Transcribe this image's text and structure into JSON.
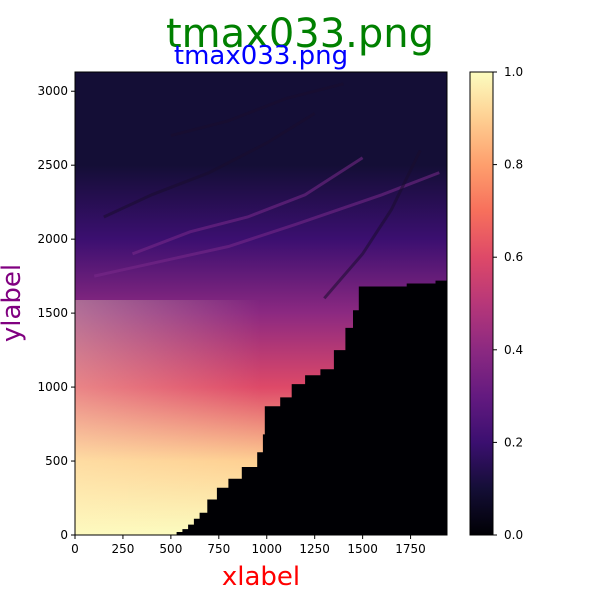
{
  "chart_data": {
    "type": "heatmap",
    "suptitle": "tmax033.png",
    "title": "tmax033.png",
    "xlabel": "xlabel",
    "ylabel": "ylabel",
    "colormap": "magma",
    "xlim": [
      0,
      1940
    ],
    "ylim": [
      0,
      3130
    ],
    "xticks": [
      0,
      250,
      500,
      750,
      1000,
      1250,
      1500,
      1750
    ],
    "yticks": [
      0,
      500,
      1000,
      1500,
      2000,
      2500,
      3000
    ],
    "colorbar": {
      "range": [
        0.0,
        1.0
      ],
      "ticks": [
        "0.0",
        "0.2",
        "0.4",
        "0.6",
        "0.8",
        "1.0"
      ]
    },
    "mask_boundary": [
      [
        510,
        0
      ],
      [
        530,
        20
      ],
      [
        560,
        40
      ],
      [
        590,
        70
      ],
      [
        620,
        110
      ],
      [
        650,
        150
      ],
      [
        690,
        240
      ],
      [
        740,
        320
      ],
      [
        800,
        380
      ],
      [
        870,
        460
      ],
      [
        950,
        560
      ],
      [
        980,
        680
      ],
      [
        990,
        870
      ],
      [
        1070,
        930
      ],
      [
        1130,
        1020
      ],
      [
        1200,
        1080
      ],
      [
        1280,
        1120
      ],
      [
        1350,
        1250
      ],
      [
        1410,
        1400
      ],
      [
        1450,
        1520
      ],
      [
        1480,
        1680
      ],
      [
        1560,
        1680
      ],
      [
        1730,
        1700
      ],
      [
        1880,
        1720
      ],
      [
        1940,
        1740
      ]
    ],
    "color_trend": [
      {
        "y": 0,
        "value": 0.97
      },
      {
        "y": 500,
        "value": 0.88
      },
      {
        "y": 1000,
        "value": 0.62
      },
      {
        "y": 1500,
        "value": 0.4
      },
      {
        "y": 2000,
        "value": 0.22
      },
      {
        "y": 2500,
        "value": 0.12
      },
      {
        "y": 3000,
        "value": 0.08
      }
    ]
  },
  "colors": {
    "suptitle": "#008000",
    "title": "#0000ff",
    "xlabel": "#ff0000",
    "ylabel": "#800080",
    "masked": "#000004"
  }
}
